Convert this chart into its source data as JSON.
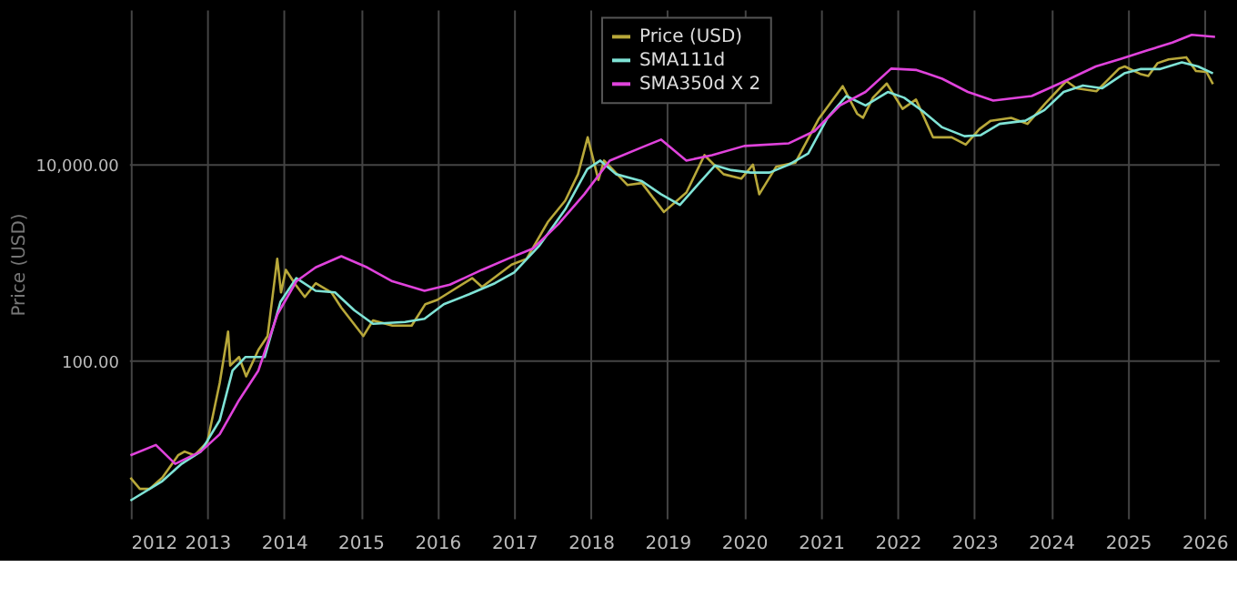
{
  "chart_data": {
    "type": "line",
    "ylabel": "Price (USD)",
    "log": "y",
    "grid": true,
    "legend": "top",
    "line_style": "solid",
    "marker": "none",
    "xlim": [
      "2011-12-25",
      "2026-03-10"
    ],
    "xticks": [
      "2012",
      "2013",
      "2014",
      "2015",
      "2016",
      "2017",
      "2018",
      "2019",
      "2020",
      "2021",
      "2022",
      "2023",
      "2024",
      "2025",
      "2026"
    ],
    "ylim": [
      2.5,
      380000
    ],
    "yticks": [
      {
        "value": 100,
        "label": "100.00"
      },
      {
        "value": 10000,
        "label": "10,000.00"
      }
    ],
    "series": [
      {
        "name": "Price (USD)",
        "color": "#b8a83a",
        "x": [
          "2012-01-01",
          "2012-02-15",
          "2012-04-01",
          "2012-06-01",
          "2012-08-15",
          "2012-09-15",
          "2012-11-01",
          "2013-01-01",
          "2013-03-01",
          "2013-04-10",
          "2013-04-20",
          "2013-06-01",
          "2013-07-05",
          "2013-09-01",
          "2013-10-15",
          "2013-11-30",
          "2013-12-18",
          "2014-01-10",
          "2014-02-25",
          "2014-04-10",
          "2014-06-01",
          "2014-08-15",
          "2014-10-01",
          "2015-01-14",
          "2015-03-01",
          "2015-06-01",
          "2015-09-01",
          "2015-11-05",
          "2016-01-01",
          "2016-06-15",
          "2016-08-01",
          "2016-12-20",
          "2017-03-01",
          "2017-06-10",
          "2017-09-01",
          "2017-11-01",
          "2017-12-17",
          "2018-02-06",
          "2018-03-05",
          "2018-06-25",
          "2018-09-01",
          "2018-12-15",
          "2019-04-01",
          "2019-06-26",
          "2019-09-25",
          "2019-12-18",
          "2020-02-12",
          "2020-03-13",
          "2020-06-01",
          "2020-09-01",
          "2020-12-20",
          "2021-04-14",
          "2021-06-22",
          "2021-07-20",
          "2021-09-05",
          "2021-11-10",
          "2022-01-24",
          "2022-03-29",
          "2022-06-18",
          "2022-09-15",
          "2022-11-21",
          "2023-01-25",
          "2023-03-20",
          "2023-06-25",
          "2023-09-11",
          "2023-12-05",
          "2024-03-14",
          "2024-05-01",
          "2024-08-05",
          "2024-11-20",
          "2024-12-17",
          "2025-02-28",
          "2025-04-08",
          "2025-05-22",
          "2025-07-14",
          "2025-10-06",
          "2025-11-21",
          "2026-01-10",
          "2026-02-10"
        ],
        "values": [
          6.5,
          5,
          5,
          6.5,
          11,
          12,
          11,
          15,
          60,
          200,
          90,
          110,
          70,
          130,
          180,
          1100,
          500,
          850,
          600,
          450,
          620,
          500,
          350,
          180,
          260,
          230,
          230,
          380,
          420,
          700,
          570,
          960,
          1100,
          2600,
          4300,
          8000,
          19000,
          7000,
          11000,
          6200,
          6500,
          3300,
          5200,
          12500,
          8000,
          7200,
          10000,
          5000,
          9500,
          10500,
          29000,
          63000,
          33000,
          30000,
          48000,
          67000,
          37000,
          46000,
          19000,
          19000,
          16000,
          23000,
          28000,
          30000,
          26000,
          42000,
          71000,
          60000,
          56000,
          95000,
          100000,
          84000,
          80000,
          108000,
          118000,
          124000,
          90000,
          88000,
          66000
        ]
      },
      {
        "name": "SMA111d",
        "color": "#7fe3d6",
        "x": [
          "2012-01-01",
          "2012-06-01",
          "2012-09-01",
          "2012-12-01",
          "2013-03-01",
          "2013-05-01",
          "2013-07-01",
          "2013-10-01",
          "2013-12-15",
          "2014-03-01",
          "2014-06-01",
          "2014-09-01",
          "2014-12-01",
          "2015-03-01",
          "2015-08-01",
          "2015-11-01",
          "2016-02-01",
          "2016-06-01",
          "2016-10-01",
          "2017-01-01",
          "2017-05-01",
          "2017-09-01",
          "2017-12-15",
          "2018-02-15",
          "2018-05-01",
          "2018-09-01",
          "2018-12-01",
          "2019-03-01",
          "2019-06-01",
          "2019-08-15",
          "2019-11-01",
          "2020-02-01",
          "2020-05-01",
          "2020-08-01",
          "2020-11-01",
          "2021-02-01",
          "2021-05-01",
          "2021-08-01",
          "2021-11-15",
          "2022-02-01",
          "2022-05-01",
          "2022-08-01",
          "2022-11-15",
          "2023-02-01",
          "2023-05-01",
          "2023-09-01",
          "2023-12-01",
          "2024-03-01",
          "2024-06-01",
          "2024-09-01",
          "2024-12-15",
          "2025-03-01",
          "2025-06-01",
          "2025-09-15",
          "2025-12-01",
          "2026-02-10"
        ],
        "values": [
          3.8,
          6,
          9,
          12,
          25,
          80,
          110,
          110,
          400,
          700,
          520,
          500,
          330,
          240,
          250,
          270,
          380,
          480,
          620,
          800,
          1500,
          3500,
          9000,
          11000,
          8000,
          6800,
          5000,
          3900,
          6500,
          9800,
          8800,
          8300,
          8300,
          10000,
          13000,
          30000,
          50000,
          40000,
          55000,
          48000,
          35000,
          24000,
          19500,
          20000,
          26000,
          28000,
          36000,
          55000,
          64000,
          60000,
          85000,
          94000,
          94000,
          110000,
          100000,
          85000
        ]
      },
      {
        "name": "SMA350d X 2",
        "color": "#e043dc",
        "x": [
          "2012-01-01",
          "2012-05-01",
          "2012-08-01",
          "2012-12-01",
          "2013-03-01",
          "2013-06-01",
          "2013-09-01",
          "2013-12-01",
          "2014-03-01",
          "2014-06-01",
          "2014-10-01",
          "2015-02-01",
          "2015-06-01",
          "2015-11-01",
          "2016-03-01",
          "2016-08-01",
          "2016-12-01",
          "2017-04-01",
          "2017-08-01",
          "2017-12-01",
          "2018-04-01",
          "2018-09-01",
          "2018-12-01",
          "2019-04-01",
          "2019-08-01",
          "2020-01-01",
          "2020-08-01",
          "2020-12-01",
          "2021-04-01",
          "2021-08-01",
          "2021-12-01",
          "2022-04-01",
          "2022-08-01",
          "2022-12-01",
          "2023-04-01",
          "2023-10-01",
          "2024-03-01",
          "2024-08-01",
          "2024-12-01",
          "2025-04-01",
          "2025-08-01",
          "2025-11-01",
          "2026-02-20"
        ],
        "values": [
          11,
          14,
          9,
          12,
          18,
          40,
          80,
          300,
          650,
          900,
          1170,
          900,
          650,
          520,
          600,
          850,
          1100,
          1400,
          2500,
          5000,
          11000,
          15000,
          18000,
          11000,
          12500,
          15500,
          16500,
          22000,
          40000,
          55000,
          95000,
          92000,
          75000,
          55000,
          45000,
          50000,
          70000,
          100000,
          120000,
          145000,
          175000,
          210000,
          200000
        ]
      }
    ]
  }
}
